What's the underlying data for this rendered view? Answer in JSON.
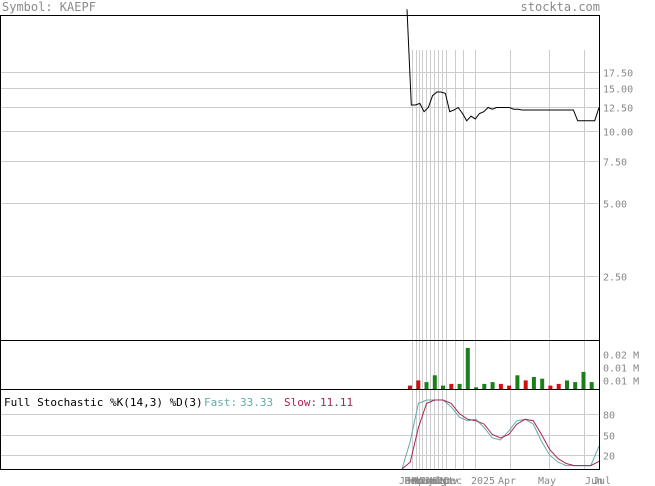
{
  "header": {
    "symbol_label": "Symbol: KAEPF",
    "site": "stockta.com"
  },
  "colors": {
    "price_line": "#000000",
    "vol_up": "#1a7f1a",
    "vol_down": "#cc1111",
    "fast": "#66aaaa",
    "slow": "#aa2255",
    "grid": "#cccccc",
    "text": "#888888"
  },
  "chart_data": [
    {
      "type": "line",
      "panel": "price",
      "scale": "log",
      "ylim": [
        1.35,
        30
      ],
      "y_ticks": [
        17.5,
        15.0,
        12.5,
        10.0,
        7.5,
        5.0,
        2.5
      ],
      "y_tick_labels": [
        "17.50",
        "15.00",
        "12.50",
        "10.00",
        "7.50",
        "5.00",
        "2.50"
      ],
      "x_labels": [
        "Jan",
        "Feb",
        "Mar",
        "Apr",
        "May",
        "Jun",
        "Jul",
        "Aug",
        "Sep",
        "Oct",
        "Nov",
        "Dec",
        "2025",
        "Apr",
        "May",
        "Jun",
        "Jul"
      ],
      "series": [
        {
          "x": [
            0,
            1,
            2,
            3,
            4,
            5,
            6,
            7,
            8,
            9,
            10,
            11,
            12,
            13,
            14,
            15,
            16,
            17,
            18,
            19,
            20,
            21,
            22,
            23,
            24,
            25,
            26,
            27,
            28,
            29,
            30,
            31,
            32,
            33,
            34,
            35,
            36,
            37,
            38,
            39,
            40,
            41,
            42,
            43,
            44,
            45
          ],
          "values": [
            32,
            12.8,
            12.8,
            13.0,
            12.0,
            12.5,
            14.0,
            14.5,
            14.5,
            14.3,
            12.0,
            12.2,
            12.5,
            11.8,
            11.0,
            11.5,
            11.2,
            11.8,
            12.0,
            12.5,
            12.3,
            12.5,
            12.5,
            12.5,
            12.5,
            12.3,
            12.3,
            12.2,
            12.2,
            12.2,
            12.2,
            12.2,
            12.2,
            12.2,
            12.2,
            12.2,
            12.2,
            12.2,
            12.2,
            12.2,
            11.0,
            11.0,
            11.0,
            11.0,
            11.0,
            12.5
          ]
        }
      ]
    },
    {
      "type": "bar",
      "panel": "volume",
      "ylim": [
        0,
        0.028
      ],
      "y_tick_labels": [
        "0.02 M",
        "0.01 M",
        "0.01 M"
      ],
      "y_ticks": [
        0.02,
        0.0125,
        0.005
      ],
      "bars": [
        {
          "x": 0,
          "value": 0.002,
          "dir": "down"
        },
        {
          "x": 1,
          "value": 0.005,
          "dir": "down"
        },
        {
          "x": 2,
          "value": 0.004,
          "dir": "up"
        },
        {
          "x": 3,
          "value": 0.008,
          "dir": "up"
        },
        {
          "x": 4,
          "value": 0.002,
          "dir": "up"
        },
        {
          "x": 5,
          "value": 0.003,
          "dir": "down"
        },
        {
          "x": 6,
          "value": 0.003,
          "dir": "up"
        },
        {
          "x": 7,
          "value": 0.024,
          "dir": "up"
        },
        {
          "x": 8,
          "value": 0.001,
          "dir": "up"
        },
        {
          "x": 9,
          "value": 0.003,
          "dir": "up"
        },
        {
          "x": 10,
          "value": 0.004,
          "dir": "up"
        },
        {
          "x": 11,
          "value": 0.003,
          "dir": "down"
        },
        {
          "x": 12,
          "value": 0.002,
          "dir": "down"
        },
        {
          "x": 13,
          "value": 0.008,
          "dir": "up"
        },
        {
          "x": 14,
          "value": 0.005,
          "dir": "down"
        },
        {
          "x": 15,
          "value": 0.007,
          "dir": "up"
        },
        {
          "x": 16,
          "value": 0.006,
          "dir": "up"
        },
        {
          "x": 17,
          "value": 0.002,
          "dir": "down"
        },
        {
          "x": 18,
          "value": 0.003,
          "dir": "down"
        },
        {
          "x": 19,
          "value": 0.005,
          "dir": "up"
        },
        {
          "x": 20,
          "value": 0.004,
          "dir": "up"
        },
        {
          "x": 21,
          "value": 0.01,
          "dir": "up"
        },
        {
          "x": 22,
          "value": 0.004,
          "dir": "up"
        }
      ]
    },
    {
      "type": "line",
      "panel": "stochastic",
      "title": "Full Stochastic %K(14,3) %D(3)",
      "legend": [
        {
          "label": "Fast:",
          "value": "33.33"
        },
        {
          "label": "Slow:",
          "value": "11.11"
        }
      ],
      "ylim": [
        0,
        100
      ],
      "y_ticks": [
        80,
        50,
        20
      ],
      "y_tick_labels": [
        "80",
        "50",
        "20"
      ],
      "series": [
        {
          "name": "Fast",
          "x": [
            0,
            2,
            4,
            6,
            8,
            10,
            12,
            14,
            16,
            18,
            20,
            22,
            24,
            26,
            28,
            30,
            32,
            34,
            36,
            38,
            40,
            42,
            44,
            46,
            48
          ],
          "values": [
            0,
            40,
            95,
            100,
            100,
            100,
            90,
            75,
            70,
            72,
            60,
            45,
            42,
            55,
            70,
            72,
            65,
            40,
            20,
            10,
            5,
            5,
            5,
            5,
            33
          ]
        },
        {
          "name": "Slow",
          "x": [
            0,
            2,
            4,
            6,
            8,
            10,
            12,
            14,
            16,
            18,
            20,
            22,
            24,
            26,
            28,
            30,
            32,
            34,
            36,
            38,
            40,
            42,
            44,
            46,
            48
          ],
          "values": [
            0,
            10,
            60,
            95,
            100,
            100,
            95,
            80,
            72,
            70,
            65,
            50,
            45,
            50,
            65,
            72,
            70,
            50,
            28,
            15,
            8,
            5,
            5,
            5,
            11
          ]
        }
      ]
    }
  ]
}
